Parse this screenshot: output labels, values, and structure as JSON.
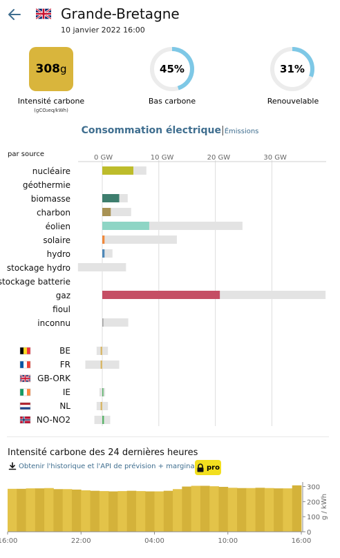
{
  "header": {
    "title": "Grande-Bretagne",
    "datetime": "10 janvier 2022 16:00"
  },
  "metrics": {
    "carbon_intensity": {
      "value": "308",
      "unit": "g",
      "label": "Intensité carbone",
      "sub_label": "(gCO₂eq/kWh)",
      "color": "#d9b53c"
    },
    "low_carbon": {
      "value": "45%",
      "fraction": 0.45,
      "label": "Bas carbone"
    },
    "renewable": {
      "value": "31%",
      "fraction": 0.31,
      "label": "Renouvelable"
    },
    "ring_color": "#7ec8e6",
    "ring_track_color": "#ececec"
  },
  "consumption": {
    "title": "Consommation électrique",
    "separator": "|",
    "emissions_link": "Émissions"
  },
  "chart_data": {
    "type": "bar",
    "section_label": "par source",
    "x_ticks": [
      "0 GW",
      "10 GW",
      "20 GW",
      "30 GW"
    ],
    "x_tick_values": [
      0,
      10,
      20,
      30
    ],
    "xlim": [
      -4.3,
      39.5
    ],
    "sources": [
      {
        "name": "nucléaire",
        "value": 5.5,
        "capacity": 7.8,
        "color": "#bdbc2b"
      },
      {
        "name": "géothermie",
        "value": 0,
        "capacity": 0,
        "color": "#a4a4a4"
      },
      {
        "name": "biomasse",
        "value": 3.0,
        "capacity": 4.5,
        "color": "#3e7e6e"
      },
      {
        "name": "charbon",
        "value": 1.5,
        "capacity": 5.1,
        "color": "#a89254"
      },
      {
        "name": "éolien",
        "value": 8.3,
        "capacity": 24.8,
        "color": "#8ed5c5"
      },
      {
        "name": "solaire",
        "value": 0.4,
        "capacity": 13.2,
        "color": "#f0893c"
      },
      {
        "name": "hydro",
        "value": 0.4,
        "capacity": 1.8,
        "color": "#4f88b8"
      },
      {
        "name": "stockage hydro",
        "value": 0,
        "capacity": 4.2,
        "capacity_min": -4.3,
        "color": "#4f88b8"
      },
      {
        "name": "stockage batterie",
        "value": 0,
        "capacity": 0,
        "color": "#6aa0c6"
      },
      {
        "name": "gaz",
        "value": 20.8,
        "capacity": 39.5,
        "color": "#c54e64"
      },
      {
        "name": "fioul",
        "value": 0,
        "capacity": 0,
        "color": "#867d66"
      },
      {
        "name": "inconnu",
        "value": 0.2,
        "capacity": 4.6,
        "color": "#a4a4a4"
      }
    ],
    "exchanges": [
      {
        "name": "BE",
        "flag": "be",
        "value": -0.3,
        "min": -1.0,
        "max": 1.0
      },
      {
        "name": "FR",
        "flag": "fr",
        "value": -0.3,
        "min": -3.0,
        "max": 3.0
      },
      {
        "name": "GB-ORK",
        "flag": "gb",
        "value": 0,
        "min": 0,
        "max": 0
      },
      {
        "name": "IE",
        "flag": "ie",
        "value": 0.2,
        "min": -0.5,
        "max": 0.5
      },
      {
        "name": "NL",
        "flag": "nl",
        "value": -0.3,
        "min": -1.0,
        "max": 1.0
      },
      {
        "name": "NO-NO2",
        "flag": "no",
        "value": 0.3,
        "min": -1.4,
        "max": 1.4
      }
    ],
    "exchange_color": "#d9b86a",
    "exchange_color_positive": "#5bb36a",
    "capacity_color": "#e3e3e3",
    "gridline_color": "#dcdcdc"
  },
  "history": {
    "title": "Intensité carbone des 24 dernières heures",
    "link_text": "Obtenir l'historique et l'API de prévision + marginal",
    "pro_label": "pro",
    "chart_data": {
      "type": "area",
      "x_ticks": [
        "16:00",
        "22:00",
        "04:00",
        "10:00",
        "16:00"
      ],
      "y_ticks": [
        "300",
        "200",
        "100",
        "0"
      ],
      "y_tick_values": [
        300,
        200,
        100,
        0
      ],
      "ylabel": "g / kWh",
      "ylim": [
        0,
        330
      ],
      "values": [
        285,
        285,
        288,
        288,
        290,
        283,
        283,
        280,
        275,
        272,
        270,
        268,
        270,
        272,
        270,
        268,
        268,
        272,
        283,
        300,
        305,
        305,
        302,
        298,
        292,
        290,
        290,
        292,
        290,
        288,
        288,
        308
      ],
      "color_light": "#e3c349",
      "color_dark": "#d4b23a"
    }
  }
}
